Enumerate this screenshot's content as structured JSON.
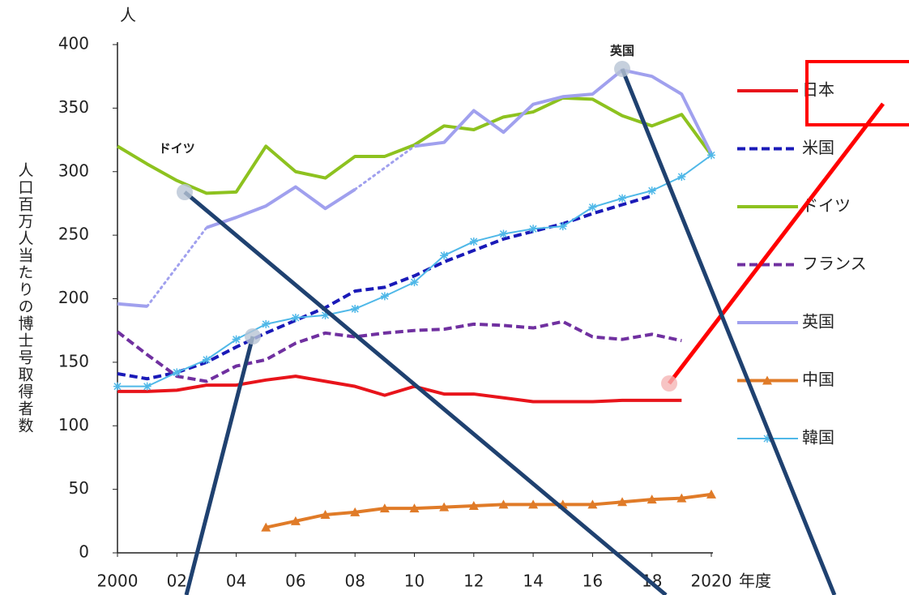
{
  "chart_data": {
    "type": "line",
    "y_unit": "人",
    "x_label": "年度",
    "y_label": "人口百万人当たりの博士号取得者数",
    "annotations": [
      {
        "text": "ドイツ",
        "x": 2002,
        "y": 318
      },
      {
        "text": "英国",
        "x": 2017,
        "y": 395
      }
    ],
    "x": [
      2000,
      2001,
      2002,
      2003,
      2004,
      2005,
      2006,
      2007,
      2008,
      2009,
      2010,
      2011,
      2012,
      2013,
      2014,
      2015,
      2016,
      2017,
      2018,
      2019,
      2020
    ],
    "xlim": [
      2000,
      2020
    ],
    "xticks": [
      2000,
      {
        "value": 2002,
        "label": "02"
      },
      {
        "value": 2004,
        "label": "04"
      },
      {
        "value": 2006,
        "label": "06"
      },
      {
        "value": 2008,
        "label": "08"
      },
      {
        "value": 2010,
        "label": "10"
      },
      {
        "value": 2012,
        "label": "12"
      },
      {
        "value": 2014,
        "label": "14"
      },
      {
        "value": 2016,
        "label": "16"
      },
      {
        "value": 2018,
        "label": "18"
      },
      2020
    ],
    "ylim": [
      0,
      400
    ],
    "yticks": [
      0,
      50,
      100,
      150,
      200,
      250,
      300,
      350,
      400
    ],
    "grid": false,
    "series": [
      {
        "name": "日本",
        "color": "#e8141b",
        "values": [
          127,
          127,
          128,
          132,
          132,
          136,
          139,
          135,
          131,
          124,
          131,
          125,
          125,
          122,
          119,
          119,
          119,
          120,
          120,
          120,
          null
        ]
      },
      {
        "name": "米国",
        "color": "#1a1ab8",
        "dash": true,
        "values": [
          141,
          137,
          142,
          150,
          162,
          173,
          183,
          193,
          206,
          209,
          218,
          229,
          238,
          247,
          253,
          259,
          267,
          274,
          281,
          null,
          null
        ]
      },
      {
        "name": "ドイツ",
        "color": "#8dc21f",
        "values": [
          320,
          306,
          293,
          283,
          284,
          320,
          300,
          295,
          312,
          312,
          321,
          336,
          333,
          343,
          347,
          358,
          357,
          344,
          336,
          345,
          313
        ]
      },
      {
        "name": "フランス",
        "color": "#7030a0",
        "dash": true,
        "values": [
          174,
          156,
          139,
          135,
          147,
          152,
          165,
          173,
          170,
          173,
          175,
          176,
          180,
          179,
          177,
          182,
          170,
          168,
          172,
          167,
          null
        ]
      },
      {
        "name": "英国",
        "color": "#a0a0ee",
        "gap_style": "dotted",
        "values": [
          196,
          194,
          null,
          256,
          264,
          273,
          288,
          271,
          286,
          null,
          320,
          323,
          348,
          331,
          353,
          359,
          361,
          380,
          375,
          361,
          314
        ]
      },
      {
        "name": "中国",
        "color": "#e07b28",
        "marker": "triangle",
        "values": [
          null,
          null,
          null,
          null,
          null,
          20,
          25,
          30,
          32,
          35,
          35,
          36,
          37,
          38,
          38,
          38,
          38,
          40,
          42,
          43,
          46
        ]
      },
      {
        "name": "韓国",
        "color": "#4fb8e8",
        "marker": "star",
        "values": [
          131,
          131,
          142,
          152,
          168,
          180,
          185,
          187,
          192,
          202,
          213,
          234,
          245,
          251,
          255,
          257,
          272,
          279,
          285,
          296,
          313
        ]
      }
    ]
  }
}
